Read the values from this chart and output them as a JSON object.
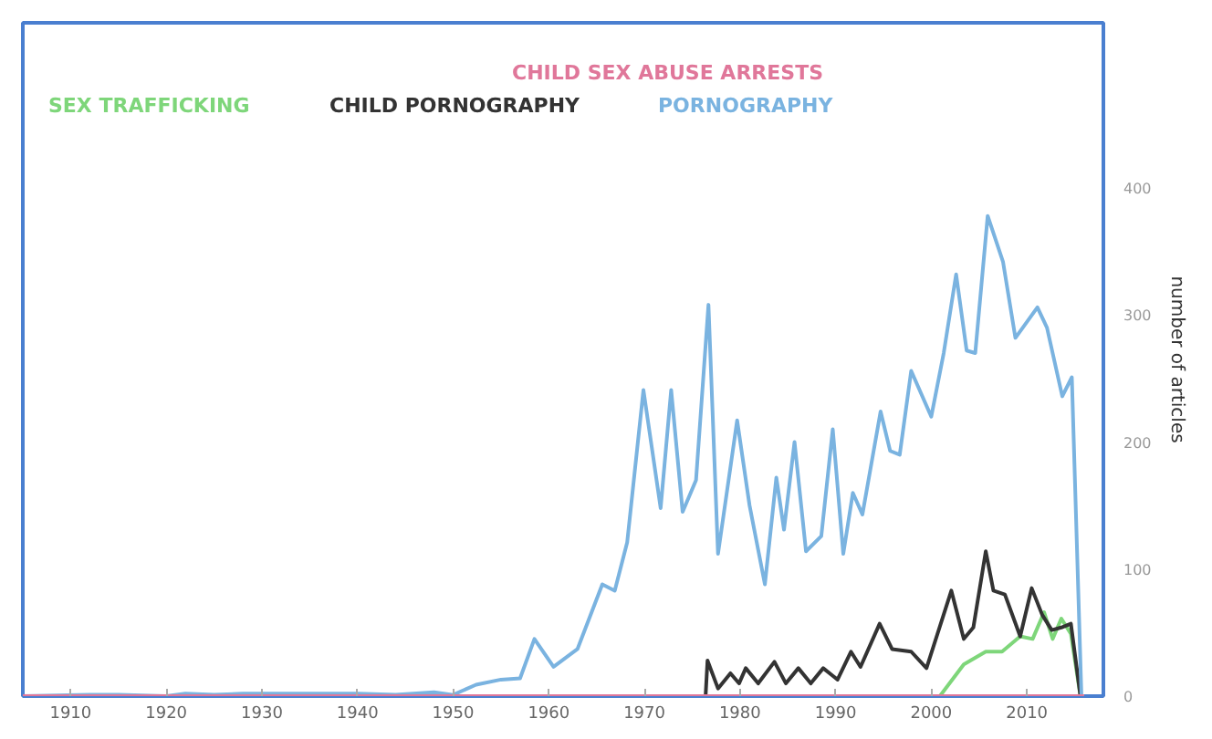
{
  "chart_data": {
    "type": "line",
    "ylabel": "number of articles",
    "xlim": [
      1905,
      2018
    ],
    "xticks": [
      1910,
      1920,
      1930,
      1940,
      1950,
      1960,
      1970,
      1980,
      1990,
      2000,
      2010
    ],
    "ylim": [
      0,
      530
    ],
    "yticks": [
      0,
      100,
      200,
      300,
      400
    ],
    "grid": false,
    "legend": "top",
    "marker": "none",
    "line_style": "solid",
    "series": [
      {
        "name": "SEX TRAFFICKING",
        "color": "#7ed67a",
        "x": [
          1998.9,
          2000.9,
          2003.4,
          2005.7,
          2007.4,
          2009.3,
          2010.6,
          2011.8,
          2012.7,
          2013.6,
          2014.6,
          2015.6
        ],
        "values": [
          0,
          0,
          25,
          35,
          35,
          47,
          45,
          66,
          45,
          61,
          49,
          0
        ]
      },
      {
        "name": "CHILD PORNOGRAPHY",
        "color": "#333333",
        "x": [
          1976.4,
          1976.6,
          1977.7,
          1979.0,
          1979.9,
          1980.6,
          1981.9,
          1983.6,
          1984.8,
          1986.1,
          1987.4,
          1988.7,
          1989.7,
          1990.2,
          1991.6,
          1992.6,
          1994.6,
          1995.9,
          1997.9,
          1999.5,
          2002.1,
          2003.4,
          2004.4,
          2005.7,
          2006.5,
          2007.7,
          2009.3,
          2010.5,
          2011.6,
          2012.6,
          2013.6,
          2014.6,
          2015.6
        ],
        "values": [
          0,
          28,
          6,
          18,
          10,
          22,
          10,
          27,
          10,
          22,
          10,
          22,
          16,
          13,
          35,
          23,
          57,
          37,
          35,
          22,
          83,
          45,
          54,
          114,
          83,
          80,
          47,
          85,
          64,
          52,
          54,
          57,
          0
        ]
      },
      {
        "name": "PORNOGRAPHY",
        "color": "#7ab3e0",
        "x": [
          1905,
          1912,
          1915,
          1920,
          1922,
          1925,
          1928,
          1930,
          1935,
          1940,
          1944,
          1948,
          1950,
          1952.4,
          1955,
          1957,
          1958.5,
          1960.5,
          1963,
          1965.6,
          1966.9,
          1968.2,
          1969.9,
          1971.7,
          1972.8,
          1974.0,
          1975.4,
          1976.7,
          1977.7,
          1979.7,
          1981.0,
          1982.6,
          1983.8,
          1984.6,
          1985.7,
          1986.9,
          1988.5,
          1989.7,
          1990.8,
          1991.8,
          1992.8,
          1994.7,
          1995.7,
          1996.7,
          1997.9,
          2000.0,
          2001.3,
          2002.6,
          2003.7,
          2004.6,
          2005.9,
          2007.5,
          2008.8,
          2011.1,
          2012.1,
          2013.7,
          2014.7,
          2015.7
        ],
        "values": [
          0,
          1,
          1,
          0,
          2,
          1,
          2,
          2,
          2,
          2,
          1,
          3,
          1,
          9,
          13,
          14,
          45,
          23,
          37,
          88,
          83,
          121,
          241,
          148,
          241,
          145,
          170,
          308,
          112,
          217,
          150,
          88,
          172,
          131,
          200,
          114,
          126,
          210,
          112,
          160,
          143,
          224,
          193,
          190,
          256,
          220,
          270,
          332,
          272,
          270,
          378,
          342,
          282,
          306,
          290,
          236,
          251,
          1
        ]
      },
      {
        "name": "CHILD SEX ABUSE ARRESTS",
        "color": "#e0779a",
        "x": [
          1905,
          2016
        ],
        "values": [
          0,
          0
        ]
      }
    ]
  }
}
